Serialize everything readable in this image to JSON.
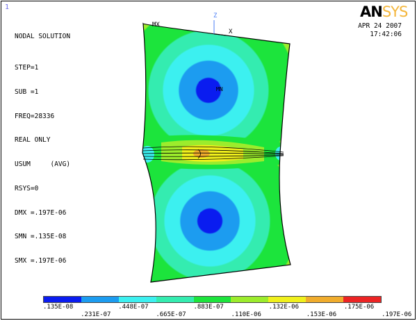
{
  "window_number": "1",
  "solution_title": "NODAL SOLUTION",
  "info_lines": [
    "STEP=1",
    "SUB =1",
    "FREQ=28336",
    "REAL ONLY",
    "USUM     (AVG)",
    "RSYS=0",
    "DMX =.197E-06",
    "SMN =.135E-08",
    "SMX =.197E-06"
  ],
  "logo": {
    "part1": "AN",
    "part2": "SYS"
  },
  "date": "APR 24 2007",
  "time": "17:42:06",
  "labels": {
    "mx": "MX",
    "mn": "MN",
    "axis_z": "Z",
    "axis_x": "X"
  },
  "legend": {
    "colors": [
      "#0a1cf0",
      "#1c9cf0",
      "#3cf0f0",
      "#34ecb0",
      "#1ce43c",
      "#9cec2c",
      "#f0f01c",
      "#f0ac2c",
      "#ec2424"
    ],
    "values_upper": [
      ".135E-08",
      ".448E-07",
      ".883E-07",
      ".132E-06",
      ".175E-06"
    ],
    "values_lower": [
      ".231E-07",
      ".665E-07",
      ".110E-06",
      ".153E-06",
      ".197E-06"
    ]
  }
}
